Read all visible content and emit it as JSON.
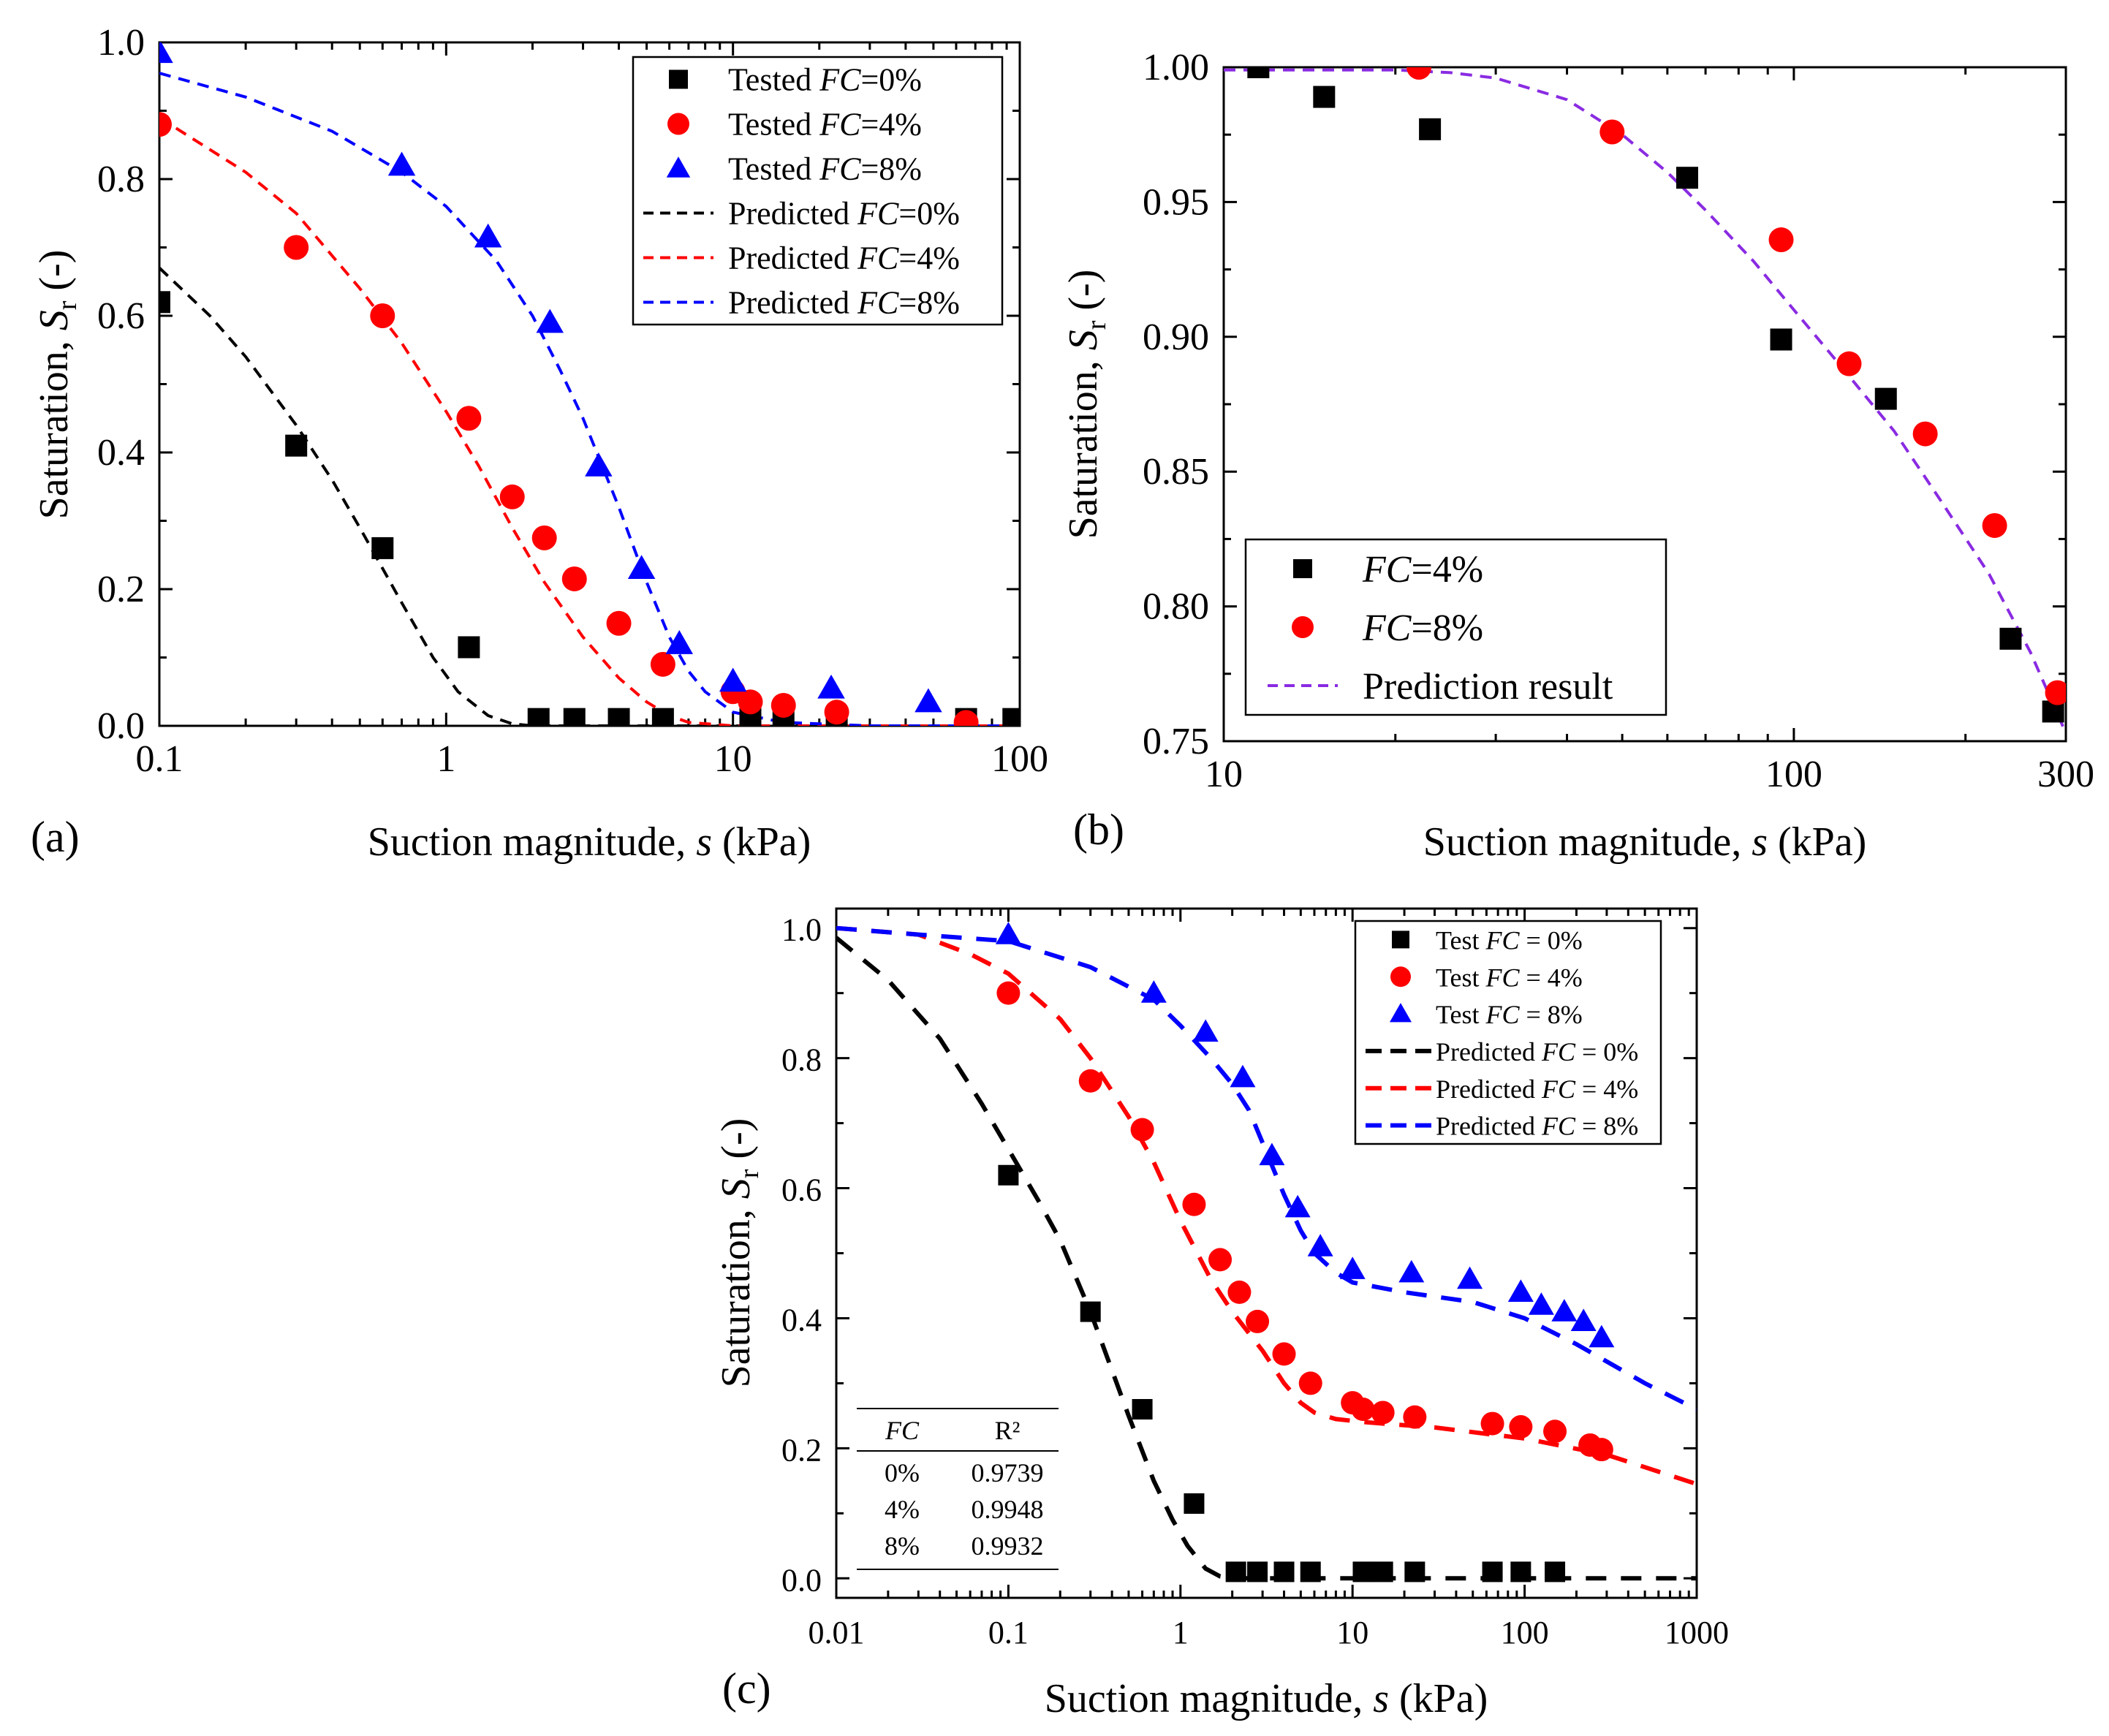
{
  "chart_data": [
    {
      "panel": "(a)",
      "type": "scatter",
      "xscale": "log",
      "xlim": [
        0.1,
        100
      ],
      "ylim": [
        0,
        1
      ],
      "xticks": [
        "0.1",
        "1",
        "10",
        "100"
      ],
      "yticks": [
        "0.0",
        "0.2",
        "0.4",
        "0.6",
        "0.8",
        "1.0"
      ],
      "xlabel_text": "Suction magnitude, ",
      "xlabel_var": "s",
      "xlabel_unit": " (kPa)",
      "ylabel_text": "Saturation, ",
      "ylabel_var": "S",
      "ylabel_sub": "r",
      "ylabel_unit": " (-)",
      "legend_position": "top-right",
      "series": [
        {
          "name_prefix": "Tested ",
          "name_var": "FC",
          "name_value": "=0%",
          "marker": "square",
          "color": "#000000",
          "x": [
            0.1,
            0.3,
            0.6,
            1.2,
            2.1,
            2.8,
            4,
            5.7,
            11.5,
            15,
            23,
            65,
            95
          ],
          "y": [
            0.62,
            0.41,
            0.26,
            0.115,
            0.01,
            0.01,
            0.01,
            0.01,
            0.01,
            0.01,
            0.01,
            0.01,
            0.01
          ]
        },
        {
          "name_prefix": "Tested ",
          "name_var": "FC",
          "name_value": "=4%",
          "marker": "circle",
          "color": "#ff0000",
          "x": [
            0.1,
            0.3,
            0.6,
            1.2,
            1.7,
            2.2,
            2.8,
            4,
            5.7,
            10,
            11.5,
            15,
            23,
            65
          ],
          "y": [
            0.88,
            0.7,
            0.6,
            0.45,
            0.335,
            0.275,
            0.215,
            0.15,
            0.09,
            0.05,
            0.035,
            0.03,
            0.02,
            0.005
          ]
        },
        {
          "name_prefix": "Tested ",
          "name_var": "FC",
          "name_value": "=8%",
          "marker": "triangle",
          "color": "#0000ff",
          "x": [
            0.1,
            0.7,
            1.4,
            2.3,
            3.4,
            4.8,
            6.5,
            10,
            22,
            48
          ],
          "y": [
            0.985,
            0.82,
            0.715,
            0.59,
            0.38,
            0.23,
            0.12,
            0.065,
            0.055,
            0.035
          ]
        },
        {
          "name_prefix": "Predicted ",
          "name_var": "FC",
          "name_value": "=0%",
          "line": "dashed",
          "color": "#000000",
          "x": [
            0.1,
            0.15,
            0.2,
            0.3,
            0.4,
            0.5,
            0.7,
            0.9,
            1.1,
            1.4,
            1.7,
            2.0,
            3,
            5,
            10,
            30,
            100
          ],
          "y": [
            0.67,
            0.6,
            0.54,
            0.44,
            0.36,
            0.29,
            0.18,
            0.1,
            0.05,
            0.015,
            0.003,
            0.0,
            0.0,
            0.0,
            0.0,
            0.0,
            0.0
          ]
        },
        {
          "name_prefix": "Predicted ",
          "name_var": "FC",
          "name_value": "=4%",
          "line": "dashed",
          "color": "#ff0000",
          "x": [
            0.1,
            0.2,
            0.3,
            0.5,
            0.7,
            1.0,
            1.3,
            1.7,
            2.2,
            3.0,
            4.0,
            5.0,
            6.0,
            7.0,
            10,
            30,
            100
          ],
          "y": [
            0.89,
            0.81,
            0.75,
            0.64,
            0.56,
            0.46,
            0.38,
            0.29,
            0.21,
            0.13,
            0.07,
            0.035,
            0.015,
            0.005,
            0.0,
            0.0,
            0.0
          ]
        },
        {
          "name_prefix": "Predicted ",
          "name_var": "FC",
          "name_value": "=8%",
          "line": "dashed",
          "color": "#0000ff",
          "x": [
            0.1,
            0.2,
            0.4,
            0.7,
            1.0,
            1.5,
            2.0,
            2.5,
            3.0,
            4.0,
            5.0,
            6.0,
            7.0,
            8.0,
            10,
            15,
            30,
            100
          ],
          "y": [
            0.955,
            0.92,
            0.87,
            0.81,
            0.76,
            0.68,
            0.6,
            0.52,
            0.45,
            0.32,
            0.21,
            0.13,
            0.08,
            0.05,
            0.02,
            0.005,
            0.0,
            0.0
          ]
        }
      ]
    },
    {
      "panel": "(b)",
      "type": "scatter",
      "xscale": "log",
      "xlim": [
        10,
        300
      ],
      "ylim": [
        0.75,
        1.0
      ],
      "xticks": [
        "10",
        "100",
        "300"
      ],
      "yticks": [
        "0.75",
        "0.80",
        "0.85",
        "0.90",
        "0.95",
        "1.00"
      ],
      "xlabel_text": "Suction magnitude, ",
      "xlabel_var": "s",
      "xlabel_unit": " (kPa)",
      "ylabel_text": "Saturation, ",
      "ylabel_var": "S",
      "ylabel_sub": "r",
      "ylabel_unit": " (-)",
      "legend_position": "bottom-left",
      "series": [
        {
          "name_prefix": "",
          "name_var": "FC",
          "name_value": "=4%",
          "marker": "square",
          "color": "#000000",
          "x": [
            11.5,
            15,
            23,
            65,
            95,
            145,
            240,
            285
          ],
          "y": [
            1.0,
            0.989,
            0.977,
            0.959,
            0.899,
            0.877,
            0.788,
            0.761
          ]
        },
        {
          "name_prefix": "",
          "name_var": "FC",
          "name_value": "=8%",
          "marker": "circle",
          "color": "#ff0000",
          "x": [
            22,
            48,
            95,
            125,
            170,
            225,
            290
          ],
          "y": [
            1.0,
            0.976,
            0.936,
            0.89,
            0.864,
            0.83,
            0.768
          ]
        },
        {
          "name_prefix": "Prediction result",
          "name_var": "",
          "name_value": "",
          "line": "dashed",
          "color": "#8a2be2",
          "x": [
            10,
            15,
            20,
            25,
            30,
            40,
            50,
            60,
            70,
            85,
            100,
            120,
            150,
            180,
            220,
            260,
            300
          ],
          "y": [
            0.999,
            0.999,
            0.999,
            0.998,
            0.996,
            0.988,
            0.975,
            0.961,
            0.947,
            0.928,
            0.91,
            0.89,
            0.865,
            0.84,
            0.812,
            0.783,
            0.753
          ]
        }
      ]
    },
    {
      "panel": "(c)",
      "type": "scatter",
      "xscale": "log",
      "xlim": [
        0.01,
        1000
      ],
      "ylim": [
        -0.03,
        1.03
      ],
      "xticks": [
        "0.01",
        "0.1",
        "1",
        "10",
        "100",
        "1000"
      ],
      "yticks": [
        "0.0",
        "0.2",
        "0.4",
        "0.6",
        "0.8",
        "1.0"
      ],
      "xlabel_text": "Suction magnitude, ",
      "xlabel_var": "s",
      "xlabel_unit": " (kPa)",
      "ylabel_text": "Saturation,  ",
      "ylabel_var": "S",
      "ylabel_sub": "r",
      "ylabel_unit": " (-)",
      "legend_position": "top-right",
      "series": [
        {
          "name_prefix": "Test ",
          "name_var": "FC",
          "name_value": " = 0%",
          "marker": "square",
          "color": "#000000",
          "x": [
            0.1,
            0.3,
            0.6,
            1.2,
            2.1,
            2.8,
            4,
            5.7,
            11.5,
            15,
            23,
            65,
            95,
            150
          ],
          "y": [
            0.62,
            0.41,
            0.26,
            0.115,
            0.01,
            0.01,
            0.01,
            0.01,
            0.01,
            0.01,
            0.01,
            0.01,
            0.01,
            0.01
          ]
        },
        {
          "name_prefix": "Test ",
          "name_var": "FC",
          "name_value": " = 4%",
          "marker": "circle",
          "color": "#ff0000",
          "x": [
            0.1,
            0.3,
            0.6,
            1.2,
            1.7,
            2.2,
            2.8,
            4,
            5.7,
            10,
            11.5,
            15,
            23,
            65,
            95,
            150,
            240,
            280
          ],
          "y": [
            0.9,
            0.765,
            0.69,
            0.575,
            0.49,
            0.44,
            0.395,
            0.345,
            0.3,
            0.27,
            0.26,
            0.255,
            0.248,
            0.238,
            0.233,
            0.226,
            0.205,
            0.198
          ]
        },
        {
          "name_prefix": "Test ",
          "name_var": "FC",
          "name_value": " = 8%",
          "marker": "triangle",
          "color": "#0000ff",
          "x": [
            0.1,
            0.7,
            1.4,
            2.3,
            3.4,
            4.8,
            6.5,
            10,
            22,
            48,
            95,
            125,
            170,
            220,
            280
          ],
          "y": [
            0.99,
            0.9,
            0.84,
            0.77,
            0.65,
            0.57,
            0.51,
            0.475,
            0.47,
            0.46,
            0.44,
            0.42,
            0.41,
            0.395,
            0.37
          ]
        },
        {
          "name_prefix": "Predicted ",
          "name_var": "FC",
          "name_value": " = 0%",
          "line": "dashed",
          "color": "#000000",
          "x": [
            0.01,
            0.02,
            0.04,
            0.07,
            0.1,
            0.15,
            0.2,
            0.3,
            0.4,
            0.5,
            0.7,
            0.9,
            1.1,
            1.4,
            1.7,
            2.0,
            5,
            20,
            100,
            1000
          ],
          "y": [
            0.985,
            0.92,
            0.83,
            0.73,
            0.66,
            0.58,
            0.52,
            0.41,
            0.32,
            0.25,
            0.15,
            0.09,
            0.05,
            0.015,
            0.003,
            0.0,
            0.0,
            0.0,
            0.0,
            0.0
          ]
        },
        {
          "name_prefix": "Predicted ",
          "name_var": "FC",
          "name_value": " = 4%",
          "line": "dashed",
          "color": "#ff0000",
          "x": [
            0.01,
            0.03,
            0.06,
            0.1,
            0.2,
            0.3,
            0.5,
            0.7,
            1.0,
            1.5,
            2.0,
            3.0,
            4.0,
            5.0,
            6.0,
            8.0,
            12,
            30,
            100,
            300,
            1000
          ],
          "y": [
            1.0,
            0.99,
            0.96,
            0.93,
            0.86,
            0.8,
            0.71,
            0.64,
            0.55,
            0.46,
            0.41,
            0.35,
            0.3,
            0.27,
            0.255,
            0.245,
            0.24,
            0.232,
            0.215,
            0.19,
            0.145
          ]
        },
        {
          "name_prefix": "Predicted ",
          "name_var": "FC",
          "name_value": " = 8%",
          "line": "dashed",
          "color": "#0000ff",
          "x": [
            0.01,
            0.03,
            0.1,
            0.3,
            0.7,
            1.0,
            1.5,
            2.0,
            2.5,
            3.0,
            4.0,
            5.0,
            6.0,
            8.0,
            10,
            20,
            50,
            100,
            200,
            500,
            1000
          ],
          "y": [
            1.0,
            0.99,
            0.98,
            0.94,
            0.89,
            0.85,
            0.8,
            0.76,
            0.72,
            0.67,
            0.59,
            0.535,
            0.5,
            0.47,
            0.455,
            0.44,
            0.425,
            0.4,
            0.36,
            0.3,
            0.26
          ]
        }
      ],
      "table": {
        "headers": [
          "FC",
          "R²"
        ],
        "rows": [
          [
            "0%",
            "0.9739"
          ],
          [
            "4%",
            "0.9948"
          ],
          [
            "8%",
            "0.9932"
          ]
        ]
      }
    }
  ]
}
